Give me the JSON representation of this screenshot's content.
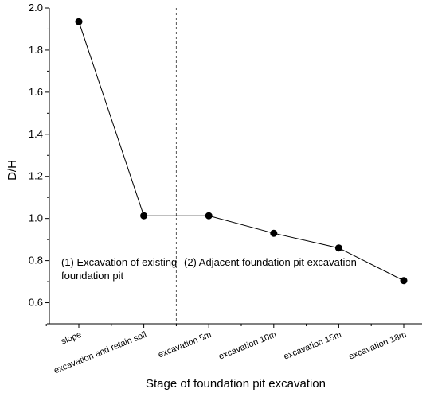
{
  "chart_data": {
    "type": "line",
    "xlabel": "Stage of foundation pit excavation",
    "ylabel": "D/H",
    "categories": [
      "slope",
      "excavation and retain soil",
      "excavation 5m",
      "excavation 10m",
      "excavation 15m",
      "excavation 18m"
    ],
    "values": [
      1.935,
      1.013,
      1.013,
      0.93,
      0.86,
      0.705
    ],
    "ylim": [
      0.5,
      2.0
    ],
    "yticks": [
      "0.6",
      "0.8",
      "1.0",
      "1.2",
      "1.4",
      "1.6",
      "1.8",
      "2.0"
    ],
    "grid": false,
    "stage_divider_after_category": 1,
    "annotations": [
      {
        "lines": [
          "(1) Excavation of existing",
          "foundation pit"
        ]
      },
      {
        "lines": [
          "(2) Adjacent foundation pit excavation"
        ]
      }
    ],
    "colors": {
      "line": "#000000",
      "marker": "#000000",
      "divider": "#555555"
    }
  }
}
